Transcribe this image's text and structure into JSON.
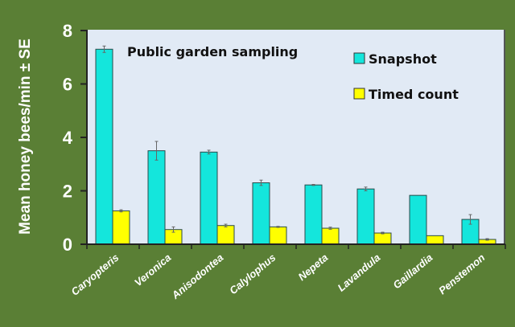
{
  "chart_data": {
    "type": "bar",
    "title": "Public garden sampling",
    "xlabel": "",
    "ylabel": "Mean honey bees/min ± SE",
    "ylim": [
      0,
      8
    ],
    "yticks": [
      "0",
      "2",
      "4",
      "6",
      "8"
    ],
    "grid": false,
    "legend_position": "top-right",
    "categories": [
      "Caryopteris",
      "Veronica",
      "Anisodontea",
      "Calylophus",
      "Nepeta",
      "Lavandula",
      "Gaillardia",
      "Penstemon"
    ],
    "series": [
      {
        "name": "Snapshot",
        "color": "#14e6dc",
        "values": [
          7.3,
          3.5,
          3.45,
          2.3,
          2.22,
          2.07,
          1.83,
          0.93
        ],
        "se": [
          0.12,
          0.35,
          0.07,
          0.1,
          0.02,
          0.07,
          0.0,
          0.18
        ]
      },
      {
        "name": "Timed count",
        "color": "#ffff00",
        "values": [
          1.25,
          0.55,
          0.7,
          0.65,
          0.6,
          0.42,
          0.32,
          0.18
        ],
        "se": [
          0.04,
          0.1,
          0.05,
          0.02,
          0.04,
          0.03,
          0.0,
          0.03
        ]
      }
    ],
    "colors": {
      "background": "#5a7f35",
      "plot_area": "#e1eaf5"
    }
  }
}
